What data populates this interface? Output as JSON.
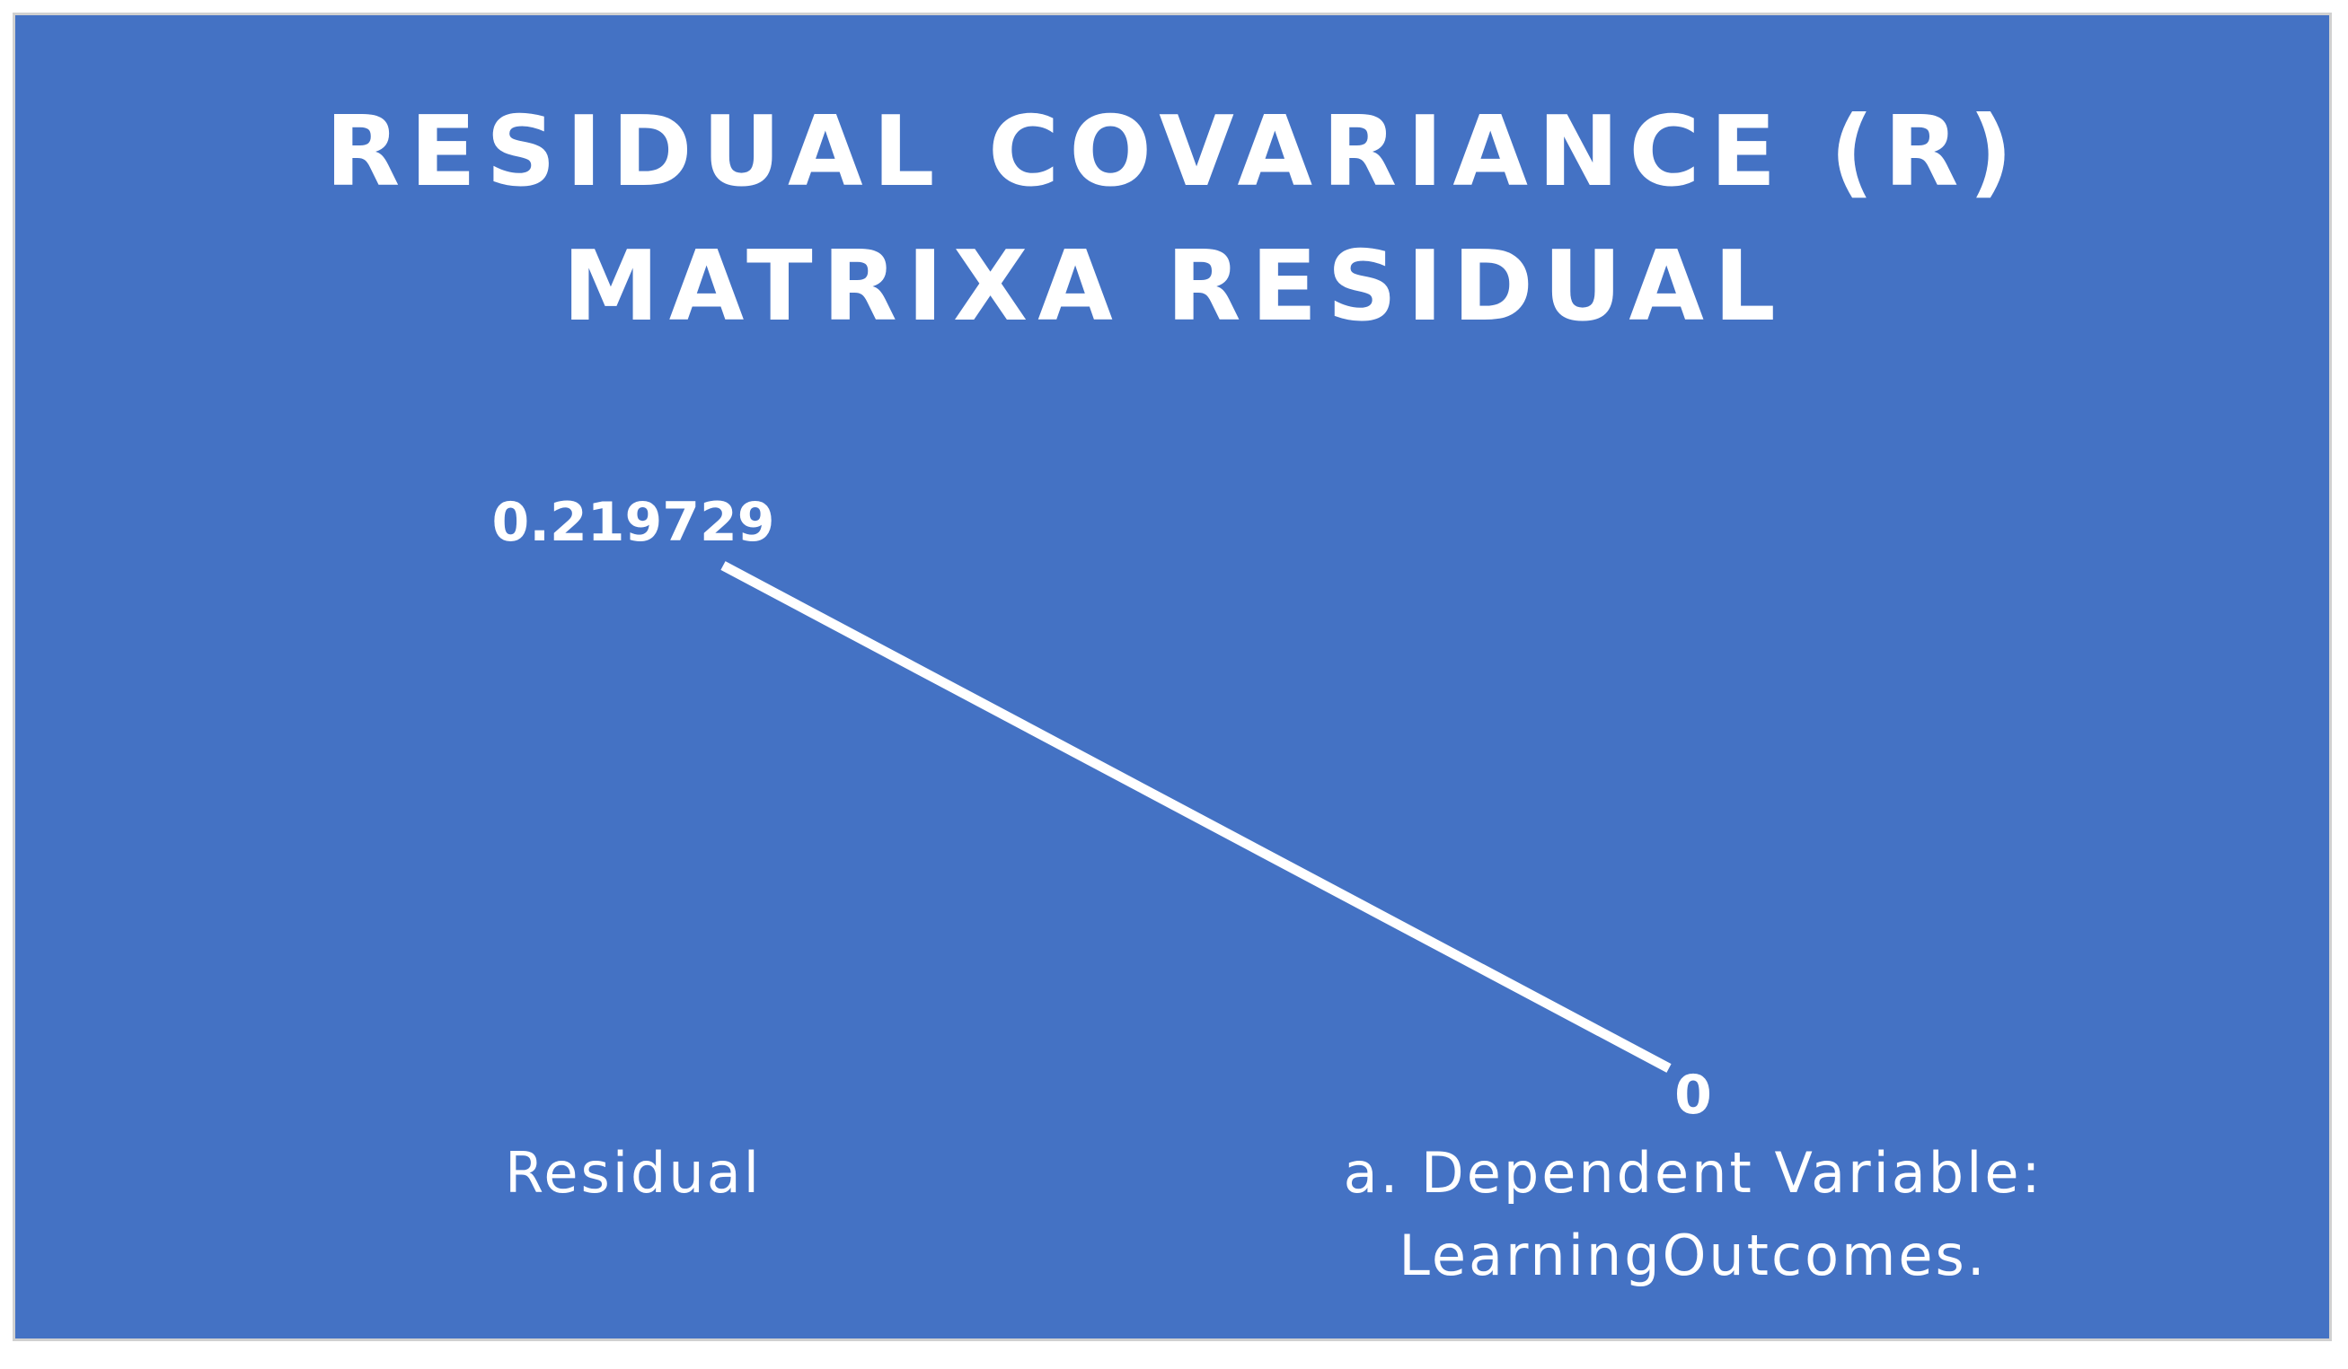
{
  "chart_data": {
    "type": "line",
    "title": "RESIDUAL COVARIANCE (R)\nMATRIXA RESIDUAL",
    "categories": [
      "Residual",
      "a. Dependent Variable:\nLearningOutcomes."
    ],
    "values": [
      0.219729,
      0
    ],
    "data_labels": [
      "0.219729",
      "0"
    ],
    "ylim": [
      0,
      0.219729
    ],
    "grid": false,
    "legend": "none",
    "colors": {
      "background": "#4472c4",
      "line": "#ffffff",
      "text": "#ffffff"
    }
  }
}
